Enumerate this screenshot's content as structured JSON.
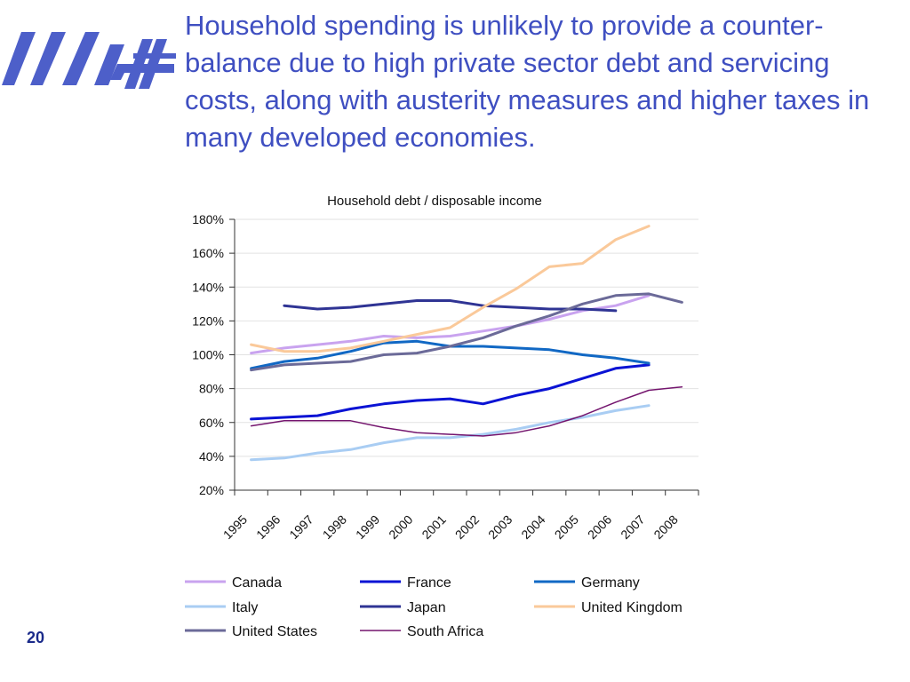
{
  "slide": {
    "title": "Household spending is unlikely to provide a counter-balance due to high private sector debt and servicing costs, along with austerity measures and higher taxes in many developed economies.",
    "page_number": "20"
  },
  "colors": {
    "title": "#3f4fc1",
    "logo": "#4d5fc9"
  },
  "chart_data": {
    "type": "line",
    "title": "Household debt / disposable income",
    "xlabel": "",
    "ylabel": "",
    "categories": [
      "1995",
      "1996",
      "1997",
      "1998",
      "1999",
      "2000",
      "2001",
      "2002",
      "2003",
      "2004",
      "2005",
      "2006",
      "2007",
      "2008"
    ],
    "ylim": [
      0.2,
      1.8
    ],
    "yticks": [
      "20%",
      "40%",
      "60%",
      "80%",
      "100%",
      "120%",
      "140%",
      "160%",
      "180%"
    ],
    "grid": true,
    "legend_position": "bottom",
    "series": [
      {
        "name": "Canada",
        "color": "#c9a3ef",
        "width": 3,
        "values": [
          1.01,
          1.04,
          1.06,
          1.08,
          1.11,
          1.1,
          1.11,
          1.14,
          1.17,
          1.21,
          1.26,
          1.29,
          1.35,
          null
        ]
      },
      {
        "name": "France",
        "color": "#0a13d4",
        "width": 3,
        "values": [
          0.62,
          0.63,
          0.64,
          0.68,
          0.71,
          0.73,
          0.74,
          0.71,
          0.76,
          0.8,
          0.86,
          0.92,
          0.94,
          null
        ]
      },
      {
        "name": "Germany",
        "color": "#1168c4",
        "width": 3,
        "values": [
          0.92,
          0.96,
          0.98,
          1.02,
          1.07,
          1.08,
          1.05,
          1.05,
          1.04,
          1.03,
          1.0,
          0.98,
          0.95,
          null
        ]
      },
      {
        "name": "Italy",
        "color": "#a9cdf3",
        "width": 3,
        "values": [
          0.38,
          0.39,
          0.42,
          0.44,
          0.48,
          0.51,
          0.51,
          0.53,
          0.56,
          0.6,
          0.63,
          0.67,
          0.7,
          null
        ]
      },
      {
        "name": "Japan",
        "color": "#2f3494",
        "width": 3,
        "values": [
          null,
          1.29,
          1.27,
          1.28,
          1.3,
          1.32,
          1.32,
          1.29,
          1.28,
          1.27,
          1.27,
          1.26,
          null,
          null
        ]
      },
      {
        "name": "United Kingdom",
        "color": "#fac99a",
        "width": 3,
        "values": [
          1.06,
          1.02,
          1.02,
          1.04,
          1.08,
          1.12,
          1.16,
          1.28,
          1.39,
          1.52,
          1.54,
          1.68,
          1.76,
          null
        ]
      },
      {
        "name": "United States",
        "color": "#6b6a98",
        "width": 3,
        "values": [
          0.91,
          0.94,
          0.95,
          0.96,
          1.0,
          1.01,
          1.05,
          1.1,
          1.17,
          1.23,
          1.3,
          1.35,
          1.36,
          1.31
        ]
      },
      {
        "name": "South Africa",
        "color": "#74156e",
        "width": 1.5,
        "values": [
          0.58,
          0.61,
          0.61,
          0.61,
          0.57,
          0.54,
          0.53,
          0.52,
          0.54,
          0.58,
          0.64,
          0.72,
          0.79,
          0.81
        ]
      }
    ]
  }
}
